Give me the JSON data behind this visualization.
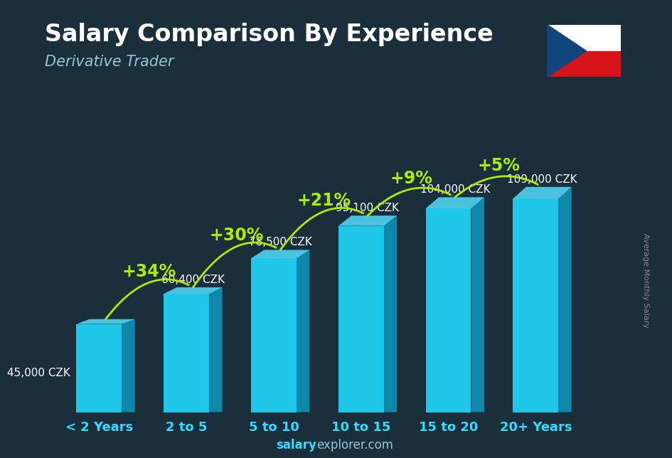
{
  "title": "Salary Comparison By Experience",
  "subtitle": "Derivative Trader",
  "ylabel": "Average Monthly Salary",
  "watermark": "salaryexplorer.com",
  "categories": [
    "< 2 Years",
    "2 to 5",
    "5 to 10",
    "10 to 15",
    "15 to 20",
    "20+ Years"
  ],
  "values": [
    45000,
    60400,
    78500,
    95100,
    104000,
    109000
  ],
  "labels": [
    "45,000 CZK",
    "60,400 CZK",
    "78,500 CZK",
    "95,100 CZK",
    "104,000 CZK",
    "109,000 CZK"
  ],
  "pct_changes": [
    null,
    "+34%",
    "+30%",
    "+21%",
    "+9%",
    "+5%"
  ],
  "bar_color_face": "#1EC6E8",
  "bar_color_side": "#0E88AA",
  "bar_color_top": "#55DDFF",
  "bg_color": "#1B2E3C",
  "title_color": "#ffffff",
  "subtitle_color": "#90C8D8",
  "label_color": "#ffffff",
  "pct_color": "#AAEE00",
  "arrow_color": "#AAEE00",
  "cat_color": "#30DDFF",
  "watermark_bold_color": "#30DDFF",
  "watermark_light_color": "#90C8D8",
  "ylabel_color": "#888888",
  "title_fontsize": 24,
  "subtitle_fontsize": 15,
  "label_fontsize": 11,
  "pct_fontsize": 17,
  "cat_fontsize": 13,
  "ylim": [
    0,
    135000
  ],
  "bar_width": 0.52,
  "bar_depth": 0.15
}
